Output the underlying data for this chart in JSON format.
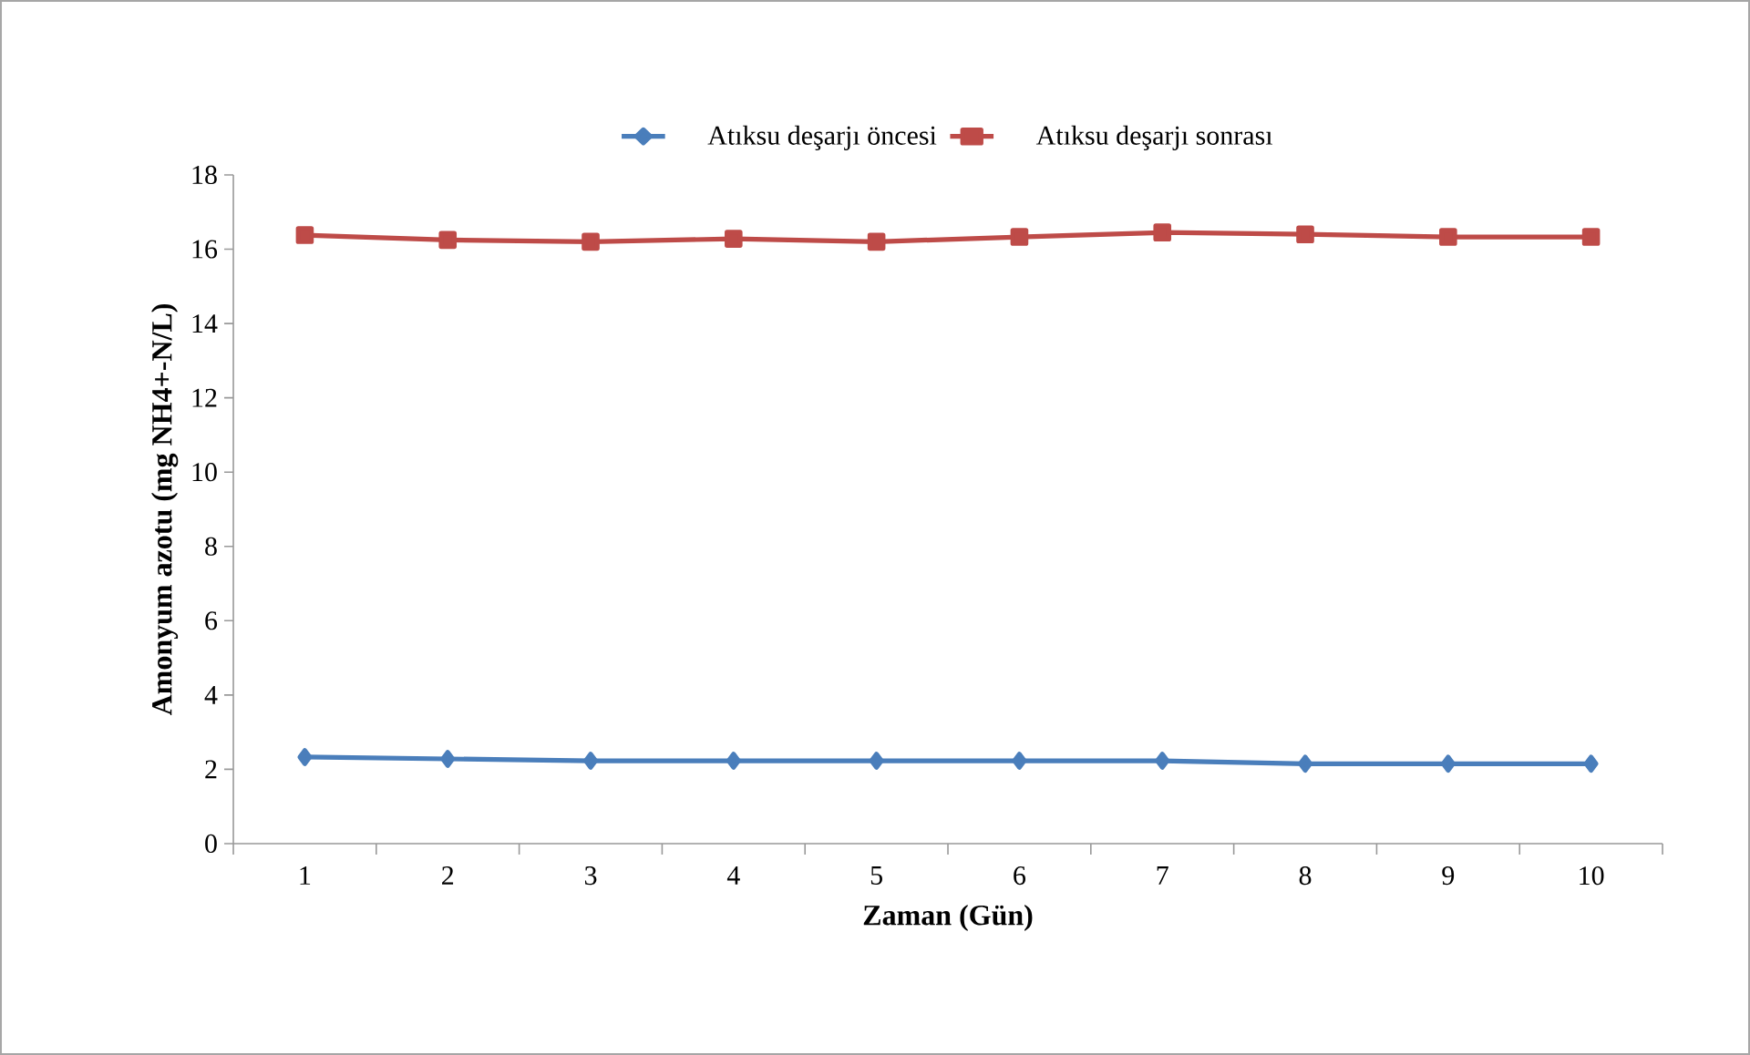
{
  "chart_data": {
    "type": "line",
    "xlabel": "Zaman (Gün)",
    "ylabel": "Amonyum azotu (mg NH4+-N/L)",
    "categories": [
      "1",
      "2",
      "3",
      "4",
      "5",
      "6",
      "7",
      "8",
      "9",
      "10"
    ],
    "series": [
      {
        "name": "Atıksu deşarjı öncesi",
        "color": "#4a7ebb",
        "marker": "diamond",
        "values": [
          2.33,
          2.28,
          2.23,
          2.23,
          2.23,
          2.23,
          2.23,
          2.15,
          2.15,
          2.15
        ]
      },
      {
        "name": "Atıksu deşarjı sonrası",
        "color": "#be4b48",
        "marker": "square",
        "values": [
          16.38,
          16.25,
          16.2,
          16.28,
          16.2,
          16.33,
          16.45,
          16.4,
          16.33,
          16.33
        ]
      }
    ],
    "ylim": [
      0,
      18
    ],
    "yticks": [
      0,
      2,
      4,
      6,
      8,
      10,
      12,
      14,
      16,
      18
    ],
    "grid": false,
    "legend": "top",
    "line_style": "solid"
  }
}
